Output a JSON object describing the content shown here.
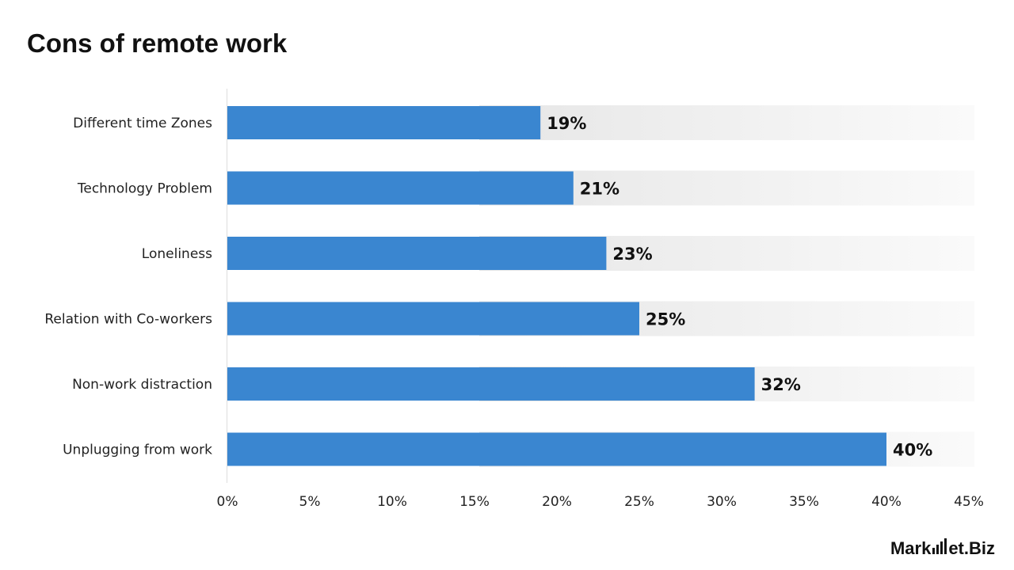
{
  "chart_data": {
    "type": "bar",
    "orientation": "horizontal",
    "title": "Cons of remote work",
    "categories": [
      "Different time Zones",
      "Technology Problem",
      "Loneliness",
      "Relation with Co-workers",
      "Non-work distraction",
      "Unplugging from work"
    ],
    "values": [
      19,
      21,
      23,
      25,
      32,
      40
    ],
    "data_labels": [
      "19%",
      "21%",
      "23%",
      "25%",
      "32%",
      "40%"
    ],
    "xlim": [
      0,
      45
    ],
    "xticks": [
      0,
      5,
      10,
      15,
      20,
      25,
      30,
      35,
      40,
      45
    ],
    "xtick_labels": [
      "0%",
      "5%",
      "10%",
      "15%",
      "20%",
      "25%",
      "30%",
      "35%",
      "40%",
      "45%"
    ],
    "xlabel": "",
    "ylabel": "",
    "grid": false,
    "bar_color": "#3a86d0"
  },
  "brand": {
    "logo_left": "Mark",
    "logo_mid": "et",
    "logo_right": ".Biz"
  }
}
